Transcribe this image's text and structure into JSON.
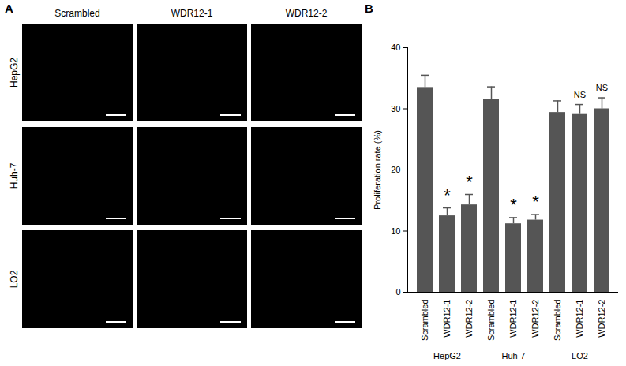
{
  "chart_data": {
    "type": "bar",
    "panel_label": "B",
    "categories": [
      "Scrambled",
      "WDR12-1",
      "WDR12-2",
      "Scrambled",
      "WDR12-1",
      "WDR12-2",
      "Scrambled",
      "WDR12-1",
      "WDR12-2"
    ],
    "groups": [
      "HepG2",
      "HepG2",
      "HepG2",
      "Huh-7",
      "Huh-7",
      "Huh-7",
      "LO2",
      "LO2",
      "LO2"
    ],
    "values": [
      33.5,
      12.5,
      14.3,
      31.6,
      11.2,
      11.8,
      29.4,
      29.2,
      30.0
    ],
    "errors": [
      2.0,
      1.3,
      1.7,
      2.0,
      1.0,
      0.9,
      1.9,
      1.5,
      1.8
    ],
    "annotations": [
      null,
      "*",
      "*",
      null,
      "*",
      "*",
      null,
      "NS",
      "NS"
    ],
    "color": "#555555",
    "y_label": "Proliferation rate (%)",
    "ylim": [
      0,
      40
    ],
    "yticks": [
      0,
      10,
      20,
      30,
      40
    ],
    "grid": false
  },
  "image_panel": {
    "panel_label": "A",
    "columns": [
      "Scrambled",
      "WDR12-1",
      "WDR12-2"
    ],
    "rows": [
      "HepG2",
      "Huh-7",
      "LO2"
    ]
  }
}
